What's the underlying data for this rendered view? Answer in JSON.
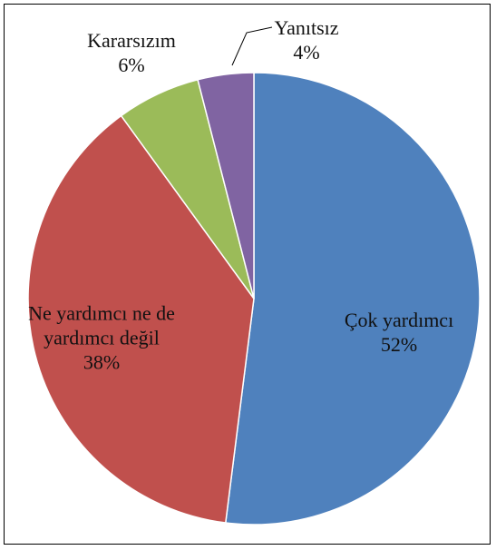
{
  "chart_data": {
    "type": "pie",
    "categories": [
      "Çok yardımcı",
      "Ne yardımcı ne de yardımcı değil",
      "Kararsızım",
      "Yanıtsız"
    ],
    "values": [
      52,
      38,
      6,
      4
    ],
    "value_labels": [
      "52%",
      "38%",
      "6%",
      "4%"
    ],
    "colors": [
      "#4f81bd",
      "#c0504d",
      "#9bbb59",
      "#8064a2"
    ]
  }
}
